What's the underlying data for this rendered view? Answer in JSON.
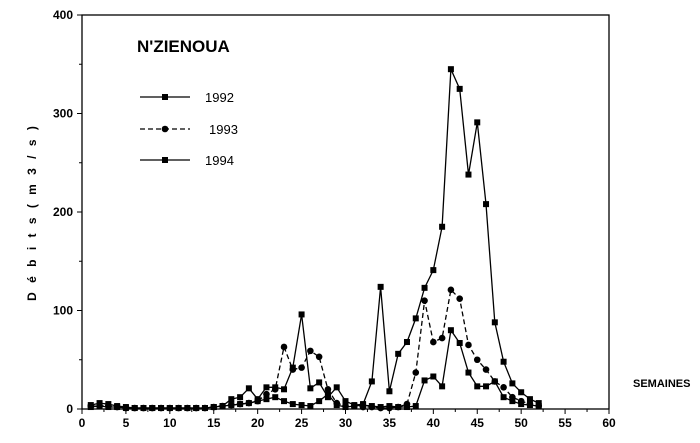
{
  "chart_data": {
    "type": "line",
    "title": "N'ZIENOUA",
    "xlabel": "SEMAINES",
    "ylabel": "D é b i t s   ( m 3 / s )",
    "xlim": [
      0,
      60
    ],
    "ylim": [
      0,
      400
    ],
    "xticks": [
      0,
      5,
      10,
      15,
      20,
      25,
      30,
      35,
      40,
      45,
      50,
      55,
      60
    ],
    "yticks": [
      0,
      100,
      200,
      300,
      400
    ],
    "grid": false,
    "legend_position": "top-left",
    "series": [
      {
        "name": "1992",
        "line_style": "solid",
        "marker": "square",
        "x": [
          1,
          2,
          3,
          4,
          5,
          6,
          7,
          8,
          9,
          10,
          11,
          12,
          13,
          14,
          15,
          16,
          17,
          18,
          19,
          20,
          21,
          22,
          23,
          24,
          25,
          26,
          27,
          28,
          29,
          30,
          31,
          32,
          33,
          34,
          35,
          36,
          37,
          38,
          39,
          40,
          41,
          42,
          43,
          44,
          45,
          46,
          47,
          48,
          49,
          50,
          51,
          52
        ],
        "y": [
          2,
          3,
          2,
          2,
          1,
          1,
          1,
          1,
          1,
          1,
          1,
          1,
          1,
          1,
          2,
          3,
          4,
          5,
          6,
          8,
          10,
          12,
          8,
          5,
          4,
          3,
          8,
          15,
          4,
          2,
          3,
          4,
          3,
          2,
          3,
          2,
          2,
          3,
          29,
          33,
          23,
          80,
          67,
          37,
          23,
          23,
          28,
          12,
          8,
          5,
          4,
          3
        ]
      },
      {
        "name": "1993",
        "line_style": "dashed",
        "marker": "circle",
        "x": [
          1,
          2,
          3,
          4,
          5,
          6,
          7,
          8,
          9,
          10,
          11,
          12,
          13,
          14,
          15,
          16,
          17,
          18,
          19,
          20,
          21,
          22,
          23,
          24,
          25,
          26,
          27,
          28,
          29,
          30,
          31,
          32,
          33,
          34,
          35,
          36,
          37,
          38,
          39,
          40,
          41,
          42,
          43,
          44,
          45,
          46,
          47,
          48,
          49,
          50,
          51,
          52
        ],
        "y": [
          3,
          3,
          3,
          2,
          1,
          1,
          1,
          1,
          1,
          1,
          1,
          1,
          1,
          1,
          2,
          3,
          4,
          5,
          6,
          8,
          15,
          20,
          63,
          40,
          42,
          59,
          53,
          20,
          6,
          3,
          3,
          2,
          2,
          1,
          1,
          2,
          5,
          37,
          110,
          68,
          72,
          121,
          112,
          65,
          50,
          40,
          28,
          22,
          12,
          8,
          5,
          3
        ]
      },
      {
        "name": "1994",
        "line_style": "solid",
        "marker": "square",
        "x": [
          1,
          2,
          3,
          4,
          5,
          6,
          7,
          8,
          9,
          10,
          11,
          12,
          13,
          14,
          15,
          16,
          17,
          18,
          19,
          20,
          21,
          22,
          23,
          24,
          25,
          26,
          27,
          28,
          29,
          30,
          31,
          32,
          33,
          34,
          35,
          36,
          37,
          38,
          39,
          40,
          41,
          42,
          43,
          44,
          45,
          46,
          47,
          48,
          49,
          50,
          51,
          52
        ],
        "y": [
          4,
          6,
          5,
          3,
          2,
          1,
          1,
          1,
          1,
          1,
          1,
          1,
          1,
          1,
          2,
          3,
          10,
          12,
          21,
          10,
          22,
          22,
          20,
          42,
          96,
          21,
          27,
          12,
          22,
          8,
          4,
          5,
          28,
          124,
          18,
          56,
          68,
          92,
          123,
          141,
          185,
          345,
          325,
          238,
          291,
          208,
          88,
          48,
          26,
          17,
          10,
          6
        ]
      }
    ]
  }
}
